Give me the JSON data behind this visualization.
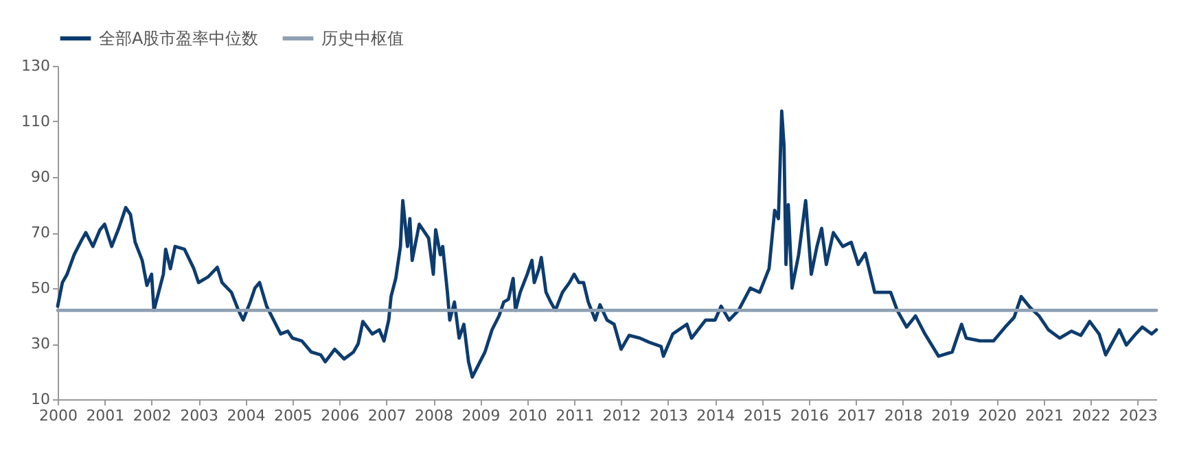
{
  "chart_data": {
    "type": "line",
    "xlim": [
      2000,
      2023.4
    ],
    "xticks": [
      2000,
      2001,
      2002,
      2003,
      2004,
      2005,
      2006,
      2007,
      2008,
      2009,
      2010,
      2011,
      2012,
      2013,
      2014,
      2015,
      2016,
      2017,
      2018,
      2019,
      2020,
      2021,
      2022,
      2023
    ],
    "ylim": [
      10,
      130
    ],
    "yticks": [
      10,
      30,
      50,
      70,
      90,
      110,
      130
    ],
    "grid": false,
    "legend": "top",
    "series": [
      {
        "name": "全部A股市盈率中位数",
        "color": "#0d3c6e",
        "x": [
          2000,
          2000.1,
          2000.2,
          2000.35,
          2000.5,
          2000.6,
          2000.75,
          2000.9,
          2001,
          2001.15,
          2001.3,
          2001.45,
          2001.55,
          2001.65,
          2001.8,
          2001.9,
          2002,
          2002.05,
          2002.15,
          2002.25,
          2002.3,
          2002.4,
          2002.5,
          2002.7,
          2002.9,
          2003,
          2003.2,
          2003.4,
          2003.5,
          2003.7,
          2003.85,
          2003.95,
          2004.1,
          2004.2,
          2004.3,
          2004.45,
          2004.6,
          2004.75,
          2004.9,
          2005,
          2005.2,
          2005.4,
          2005.6,
          2005.7,
          2005.9,
          2006.1,
          2006.3,
          2006.4,
          2006.5,
          2006.7,
          2006.85,
          2006.95,
          2007.05,
          2007.1,
          2007.2,
          2007.3,
          2007.35,
          2007.45,
          2007.5,
          2007.55,
          2007.7,
          2007.9,
          2008,
          2008.05,
          2008.15,
          2008.2,
          2008.3,
          2008.35,
          2008.45,
          2008.55,
          2008.65,
          2008.75,
          2008.83,
          2008.95,
          2009.1,
          2009.25,
          2009.4,
          2009.5,
          2009.6,
          2009.7,
          2009.75,
          2009.85,
          2010,
          2010.1,
          2010.15,
          2010.25,
          2010.3,
          2010.4,
          2010.5,
          2010.6,
          2010.75,
          2010.9,
          2011,
          2011.1,
          2011.2,
          2011.3,
          2011.45,
          2011.55,
          2011.7,
          2011.85,
          2012,
          2012.17,
          2012.4,
          2012.6,
          2012.85,
          2012.9,
          2013.1,
          2013.4,
          2013.5,
          2013.8,
          2014,
          2014.13,
          2014.3,
          2014.5,
          2014.75,
          2014.95,
          2015.15,
          2015.27,
          2015.35,
          2015.42,
          2015.47,
          2015.51,
          2015.56,
          2015.64,
          2015.78,
          2015.93,
          2016.05,
          2016.17,
          2016.27,
          2016.37,
          2016.52,
          2016.72,
          2016.9,
          2017.05,
          2017.2,
          2017.4,
          2017.6,
          2017.74,
          2017.88,
          2018.08,
          2018.27,
          2018.47,
          2018.76,
          2019.05,
          2019.25,
          2019.35,
          2019.64,
          2019.93,
          2020.18,
          2020.37,
          2020.52,
          2020.71,
          2020.9,
          2021.1,
          2021.34,
          2021.59,
          2021.79,
          2021.98,
          2022.18,
          2022.32,
          2022.61,
          2022.76,
          2022.96,
          2023.1,
          2023.3,
          2023.4
        ],
        "values": [
          43.5,
          52,
          55,
          62,
          67,
          70,
          65,
          71,
          73,
          65,
          71.5,
          79,
          76.5,
          66.5,
          60,
          51,
          55,
          42,
          48.5,
          55,
          64,
          57,
          65,
          64,
          57,
          52,
          54,
          57.5,
          52,
          48.5,
          42,
          38.5,
          45,
          50,
          52,
          43.5,
          38.5,
          33.5,
          34.5,
          32,
          31,
          27,
          26,
          23.5,
          28,
          24.5,
          27,
          30,
          38,
          33.5,
          35,
          31,
          38.5,
          47,
          53.5,
          65,
          81.5,
          65,
          75,
          60,
          73,
          68,
          55,
          71,
          62,
          65,
          48.5,
          38.5,
          45,
          32,
          37,
          23.5,
          18,
          22,
          27,
          35,
          40,
          45,
          46,
          53.5,
          42,
          48.5,
          55,
          60,
          52,
          57,
          61,
          48.5,
          45,
          42,
          48.5,
          52,
          55,
          52,
          52,
          45,
          38.5,
          44,
          38.5,
          37,
          28,
          33,
          32,
          30.5,
          29,
          25.5,
          33.5,
          37,
          32,
          38.5,
          38.5,
          43.5,
          38.5,
          42,
          50,
          48.5,
          57,
          78,
          75,
          113.7,
          101,
          58.5,
          80,
          50,
          62,
          81.5,
          55,
          65,
          71.5,
          58.5,
          70,
          65,
          66.5,
          58.5,
          62.5,
          48.5,
          48.5,
          48.5,
          42,
          36,
          40,
          33.5,
          25.5,
          27,
          37,
          32,
          31,
          31,
          36,
          39.5,
          47,
          43,
          40,
          35,
          32,
          34.5,
          33,
          38,
          33.5,
          26,
          35,
          29.5,
          33.5,
          36,
          33.5,
          35
        ]
      },
      {
        "name": "历史中枢值",
        "color": "#8fa1b3",
        "x": [
          2000,
          2023.4
        ],
        "values": [
          42,
          42
        ]
      }
    ]
  }
}
